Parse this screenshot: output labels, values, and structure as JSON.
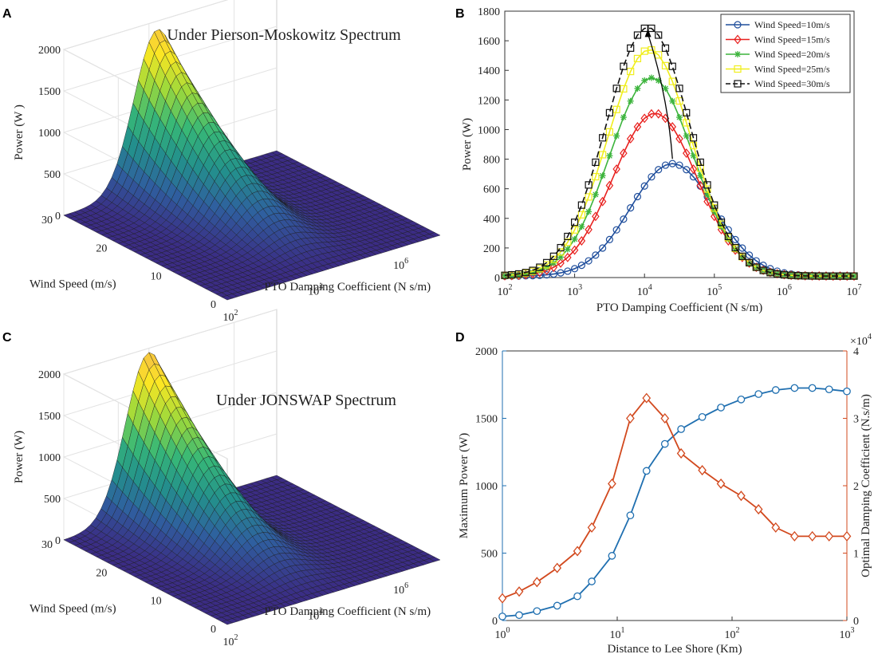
{
  "chart_data": [
    {
      "panel": "A",
      "type": "surface3d",
      "title": "Under Pierson-Moskowitz Spectrum",
      "zlabel": "Power (W )",
      "ylabel": "Wind Speed (m/s)",
      "xlabel": "PTO Damping Coefficient (N s/m)",
      "z_ticks": [
        "0",
        "500",
        "1000",
        "1500",
        "2000"
      ],
      "y_ticks": [
        "0",
        "10",
        "20",
        "30"
      ],
      "x_ticks": [
        {
          "base": "10",
          "exp": "2"
        },
        {
          "base": "10",
          "exp": "4"
        },
        {
          "base": "10",
          "exp": "6"
        }
      ],
      "zlim": [
        0,
        2000
      ],
      "ylim": [
        0,
        30
      ],
      "xlim_log10": [
        2,
        7
      ],
      "peak": {
        "wind_speed": 30,
        "log10_damping": 4.2,
        "power": 1900
      },
      "colormap": [
        "#3b2c84",
        "#2f5f9f",
        "#23918c",
        "#37b877",
        "#9dd93b",
        "#fbe723",
        "#f5b84a"
      ]
    },
    {
      "panel": "B",
      "type": "line",
      "xscale": "log",
      "xlabel": "PTO Damping Coefficient (N s/m)",
      "ylabel": "Power (W)",
      "ylim": [
        0,
        1800
      ],
      "xlim_log10": [
        2,
        7
      ],
      "y_ticks": [
        "0",
        "200",
        "400",
        "600",
        "800",
        "1000",
        "1200",
        "1400",
        "1600",
        "1800"
      ],
      "x_ticks": [
        {
          "base": "10",
          "exp": "2"
        },
        {
          "base": "10",
          "exp": "3"
        },
        {
          "base": "10",
          "exp": "4"
        },
        {
          "base": "10",
          "exp": "5"
        },
        {
          "base": "10",
          "exp": "6"
        },
        {
          "base": "10",
          "exp": "7"
        }
      ],
      "legend_position": "top-right",
      "series": [
        {
          "name": "Wind Speed=10m/s",
          "peak": 760,
          "peak_log10x": 4.4,
          "color": "#1f4e9c",
          "marker": "circle"
        },
        {
          "name": "Wind Speed=15m/s",
          "peak": 1100,
          "peak_log10x": 4.15,
          "color": "#e8211f",
          "marker": "diamond"
        },
        {
          "name": "Wind Speed=20m/s",
          "peak": 1340,
          "peak_log10x": 4.1,
          "color": "#3cb43c",
          "marker": "star"
        },
        {
          "name": "Wind Speed=25m/s",
          "peak": 1530,
          "peak_log10x": 4.07,
          "color": "#f0ee1c",
          "marker": "square"
        },
        {
          "name": "Wind Speed=30m/s",
          "peak": 1680,
          "peak_log10x": 4.05,
          "color": "#111111",
          "marker": "square-open"
        }
      ]
    },
    {
      "panel": "C",
      "type": "surface3d",
      "title": "Under JONSWAP Spectrum",
      "zlabel": "Power (W)",
      "ylabel": "Wind Speed (m/s)",
      "xlabel": "PTO Damping Coefficient (N s/m)",
      "z_ticks": [
        "0",
        "500",
        "1000",
        "1500",
        "2000"
      ],
      "y_ticks": [
        "0",
        "10",
        "20",
        "30"
      ],
      "x_ticks": [
        {
          "base": "10",
          "exp": "2"
        },
        {
          "base": "10",
          "exp": "4"
        },
        {
          "base": "10",
          "exp": "6"
        }
      ],
      "zlim": [
        0,
        2000
      ],
      "ylim": [
        0,
        30
      ],
      "xlim_log10": [
        2,
        7
      ],
      "peak": {
        "wind_speed": 30,
        "log10_damping": 4.0,
        "power": 1950
      },
      "colormap": [
        "#3b2c84",
        "#2f5f9f",
        "#23918c",
        "#37b877",
        "#9dd93b",
        "#fbe723",
        "#f5b84a"
      ]
    },
    {
      "panel": "D",
      "type": "line",
      "xscale": "log",
      "xlabel": "Distance to Lee Shore (Km)",
      "ylabel_left": "Maximum Power (W)",
      "ylabel_right": "Optimal Damping Coefficient (N.s/m)",
      "right_multiplier": {
        "times": "×",
        "base": "10",
        "exp": "4"
      },
      "xlim_log10": [
        0,
        3
      ],
      "ylim_left": [
        0,
        2000
      ],
      "ylim_right": [
        0,
        4
      ],
      "y_ticks_left": [
        "0",
        "500",
        "1000",
        "1500",
        "2000"
      ],
      "y_ticks_right": [
        "0",
        "1",
        "2",
        "3",
        "4"
      ],
      "x_ticks": [
        {
          "base": "10",
          "exp": "0"
        },
        {
          "base": "10",
          "exp": "1"
        },
        {
          "base": "10",
          "exp": "2"
        },
        {
          "base": "10",
          "exp": "3"
        }
      ],
      "series": [
        {
          "name": "Maximum Power",
          "axis": "left",
          "color": "#1f6fb0",
          "marker": "circle",
          "x": [
            1,
            1.4,
            2,
            3,
            4.5,
            6,
            9,
            13,
            18,
            26,
            36,
            55,
            80,
            120,
            170,
            240,
            350,
            500,
            700,
            1000
          ],
          "y": [
            30,
            40,
            70,
            110,
            180,
            290,
            480,
            780,
            1110,
            1310,
            1420,
            1510,
            1580,
            1640,
            1680,
            1710,
            1725,
            1725,
            1715,
            1700
          ]
        },
        {
          "name": "Optimal Damping Coefficient",
          "axis": "right",
          "color": "#d2491e",
          "marker": "diamond",
          "x": [
            1,
            1.4,
            2,
            3,
            4.5,
            6,
            9,
            13,
            18,
            26,
            36,
            55,
            80,
            120,
            170,
            240,
            350,
            500,
            700,
            1000
          ],
          "y": [
            0.33,
            0.43,
            0.57,
            0.78,
            1.03,
            1.38,
            2.03,
            3.0,
            3.3,
            3.0,
            2.48,
            2.23,
            2.03,
            1.85,
            1.65,
            1.38,
            1.25,
            1.25,
            1.25,
            1.25
          ]
        }
      ]
    }
  ]
}
